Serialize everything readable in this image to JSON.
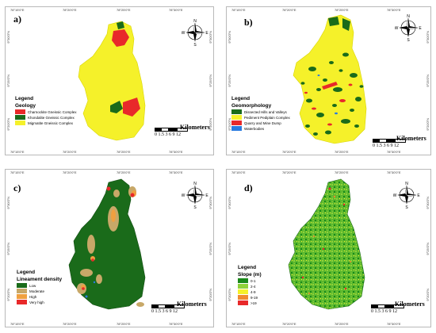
{
  "panels": [
    {
      "label": "a)",
      "legend_title": "Legend",
      "legend_subtitle": "Geology",
      "legend_items": [
        {
          "label": "Charnockite Gneissic Complex",
          "color": "#e8292a"
        },
        {
          "label": "Khondalite Gneissic Complex",
          "color": "#1a6b1a"
        },
        {
          "label": "Migmatite Gneissic Complex",
          "color": "#f5f12a"
        }
      ]
    },
    {
      "label": "b)",
      "legend_title": "Legend",
      "legend_subtitle": "Geomorphology",
      "legend_items": [
        {
          "label": "Dissected Hills and Valleys",
          "color": "#1a6b1a"
        },
        {
          "label": "Pediment Pediplain Complex",
          "color": "#f5f12a"
        },
        {
          "label": "Quarry and Mine Dump",
          "color": "#e8292a"
        },
        {
          "label": "Waterbodies",
          "color": "#2a7be0"
        }
      ]
    },
    {
      "label": "c)",
      "legend_title": "Legend",
      "legend_subtitle": "Lineament density",
      "legend_items": [
        {
          "label": "Low",
          "color": "#1a6b1a"
        },
        {
          "label": "Moderate",
          "color": "#c8a868"
        },
        {
          "label": "High",
          "color": "#f0a040"
        },
        {
          "label": "Very high",
          "color": "#e8292a"
        }
      ]
    },
    {
      "label": "d)",
      "legend_title": "Legend",
      "legend_subtitle": "Slope (m)",
      "legend_items": [
        {
          "label": "0-1",
          "color": "#1a8a1a"
        },
        {
          "label": "2-4",
          "color": "#8fd23a"
        },
        {
          "label": "4-9",
          "color": "#f5f12a"
        },
        {
          "label": "9-19",
          "color": "#f08a30"
        },
        {
          "label": ">19",
          "color": "#e8292a"
        }
      ]
    }
  ],
  "north_arrow": {
    "n": "N",
    "s": "S",
    "e": "E",
    "w": "W"
  },
  "scale": {
    "numbers": "0 1.5 3 6 9 12",
    "unit": "Kilometers"
  },
  "ticks": {
    "lon": [
      "78°15'0\"E",
      "78°20'0\"E",
      "78°25'0\"E",
      "78°30'0\"E"
    ],
    "lat": [
      "9°30'0\"N",
      "9°25'0\"N",
      "9°20'0\"N"
    ]
  },
  "colors": {
    "red": "#e8292a",
    "dark_green": "#1a6b1a",
    "yellow": "#f5f12a",
    "blue": "#2a7be0",
    "tan": "#c8a868",
    "orange": "#f0a040",
    "lime": "#8fd23a"
  }
}
